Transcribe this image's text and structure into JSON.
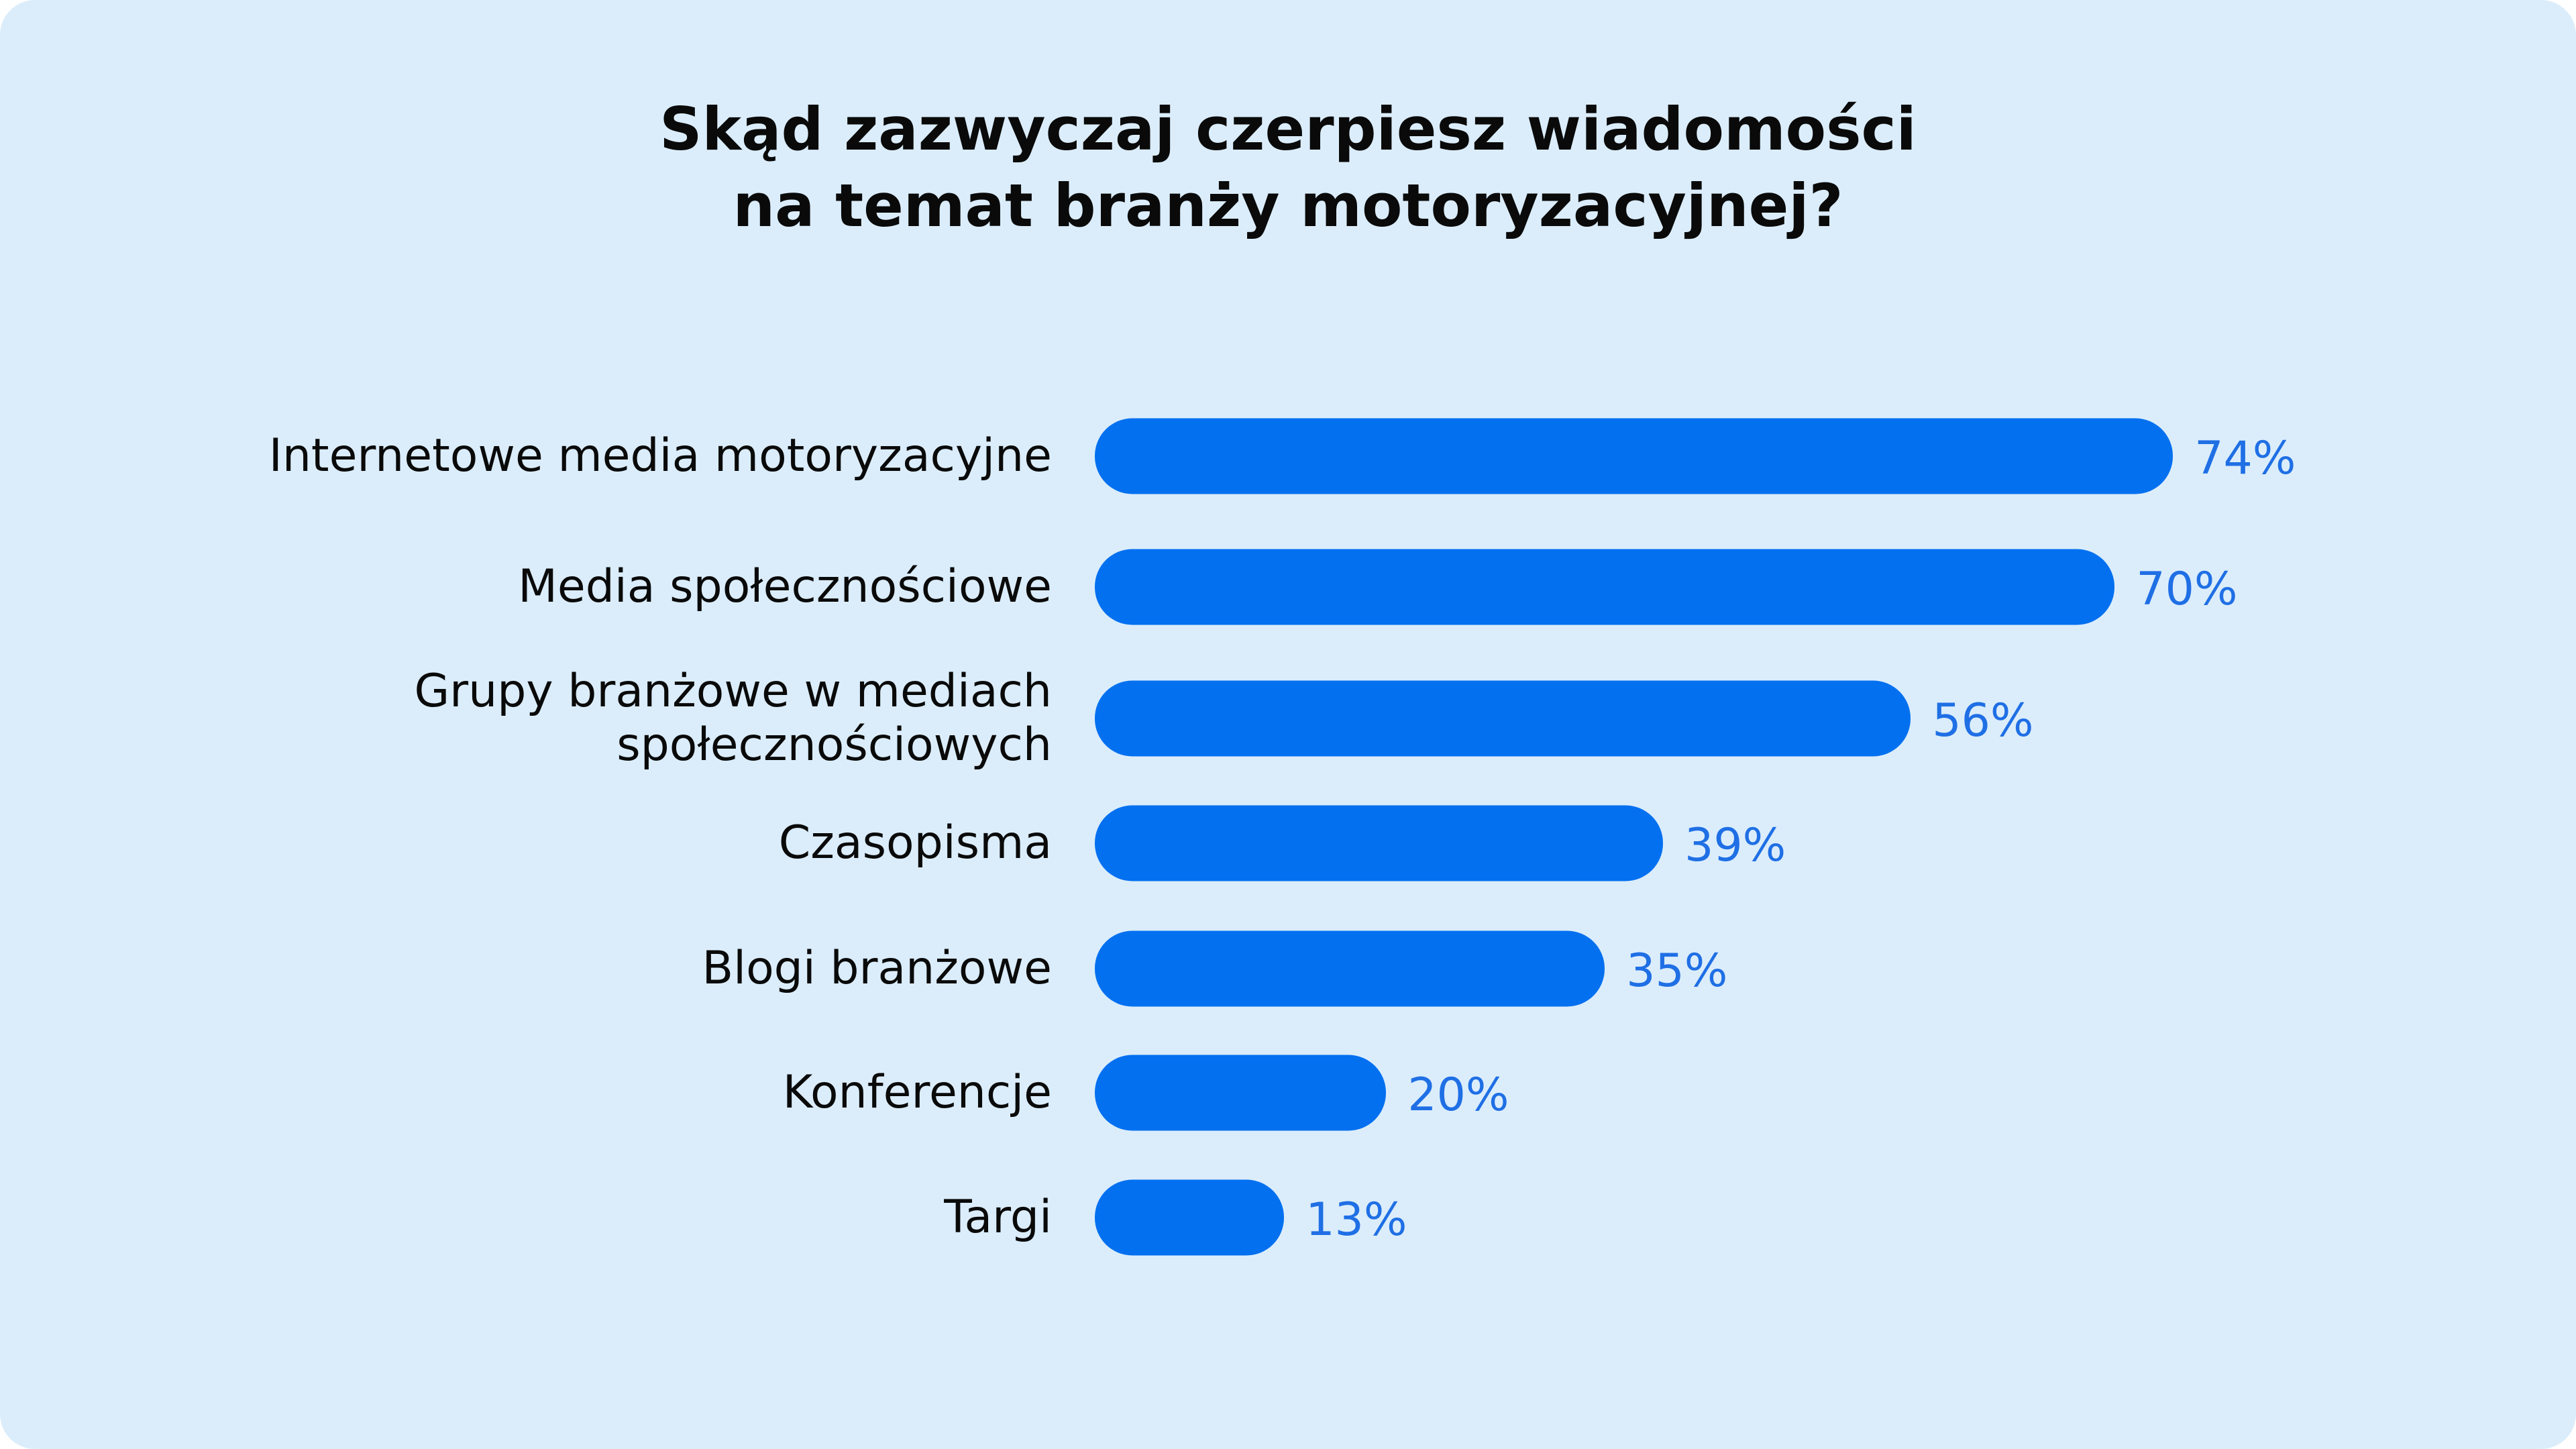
{
  "colors": {
    "background": "#dbedfb",
    "bar": "#0370f0",
    "value_text": "#1f6fe5",
    "label_text": "#0a0a0a"
  },
  "chart_data": {
    "type": "bar",
    "orientation": "horizontal",
    "title_lines": [
      "Skąd zazwyczaj czerpiesz wiadomości",
      "na temat branży motoryzacyjnej?"
    ],
    "categories": [
      [
        "Internetowe media motoryzacyjne"
      ],
      [
        "Media społecznościowe"
      ],
      [
        "Grupy branżowe w mediach",
        "społecznościowych"
      ],
      [
        "Czasopisma"
      ],
      [
        "Blogi branżowe"
      ],
      [
        "Konferencje"
      ],
      [
        "Targi"
      ]
    ],
    "values": [
      74,
      70,
      56,
      39,
      35,
      20,
      13
    ],
    "value_labels": [
      "74%",
      "70%",
      "56%",
      "39%",
      "35%",
      "20%",
      "13%"
    ],
    "unit": "%",
    "xlim": [
      0,
      100
    ],
    "grid": false,
    "legend": "none"
  }
}
